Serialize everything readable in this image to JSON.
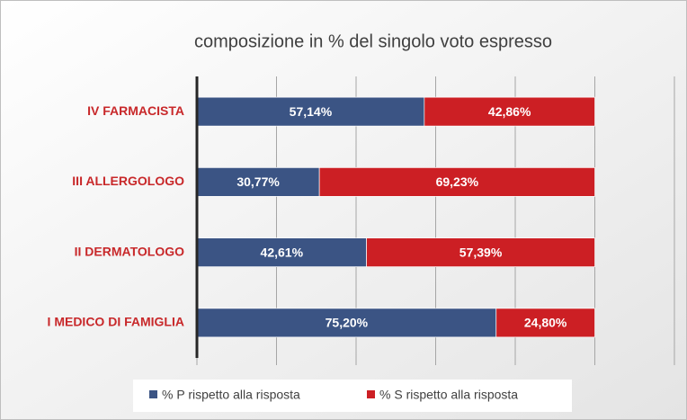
{
  "chart_data": {
    "type": "stacked-bar-horizontal",
    "title": "composizione in % del singolo voto espresso",
    "categories": [
      "IV FARMACISTA",
      "III ALLERGOLOGO",
      "II DERMATOLOGO",
      "I MEDICO DI FAMIGLIA"
    ],
    "series": [
      {
        "name": "% P rispetto alla risposta",
        "color": "#3b5484",
        "values": [
          57.14,
          30.77,
          42.61,
          75.2
        ],
        "value_labels": [
          "57,14%",
          "30,77%",
          "42,61%",
          "75,20%"
        ]
      },
      {
        "name": "% S rispetto alla risposta",
        "color": "#cc1f24",
        "values": [
          42.86,
          69.23,
          57.39,
          24.8
        ],
        "value_labels": [
          "42,86%",
          "69,23%",
          "57,39%",
          "24,80%"
        ]
      }
    ],
    "xlim": [
      0,
      120
    ],
    "xticks": [
      0,
      20,
      40,
      60,
      80,
      100,
      120
    ],
    "grid": true,
    "legend": "bottom"
  }
}
